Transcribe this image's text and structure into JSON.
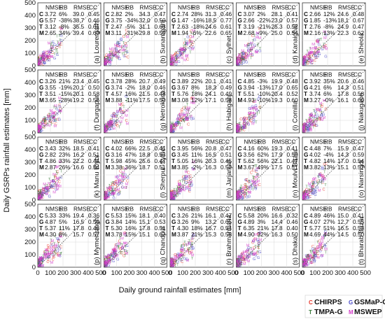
{
  "chart_data": {
    "type": "scatter",
    "xlabel": "Daily ground rainfall estimates [mm]",
    "ylabel": "Daily GSRPs rainfall estimates [mm]",
    "xlim": [
      0,
      500
    ],
    "ylim": [
      0,
      500
    ],
    "xticks": [
      "0",
      "100",
      "200",
      "300",
      "400",
      "500"
    ],
    "yticks": [
      "0",
      "100",
      "200",
      "300",
      "400",
      "500"
    ],
    "grid": true,
    "legend_position": "bottom-right",
    "stat_headers": [
      "NMSE",
      "RB",
      "RMSE",
      "CC"
    ],
    "products": [
      {
        "code": "C",
        "name": "CHIRPS",
        "color": "#e8392d"
      },
      {
        "code": "G",
        "name": "GSMaP-G",
        "color": "#4a4ac8"
      },
      {
        "code": "T",
        "name": "TMPA-G",
        "color": "#3a7a3a"
      },
      {
        "code": "M",
        "name": "MSWEP",
        "color": "#d23cc8"
      }
    ],
    "panels": [
      {
        "label": "(a) Lourergarh",
        "stats": [
          [
            "3.72",
            "6%",
            "39.0",
            "0.45"
          ],
          [
            "5.57",
            "-38%",
            "38.7",
            "0.46"
          ],
          [
            "3.12",
            "-8%",
            "35.5",
            "0.61"
          ],
          [
            "2.65",
            "34%",
            "39.4",
            "0.60"
          ]
        ]
      },
      {
        "label": "(b) Sunamganj",
        "stats": [
          [
            "2.82",
            "2%",
            "34.3",
            "0.47"
          ],
          [
            "3.75",
            "-34%",
            "32.0",
            "0.50"
          ],
          [
            "2.47",
            "-5%",
            "31.1",
            "0.63"
          ],
          [
            "3.11",
            "-31%",
            "29.8",
            "0.59"
          ]
        ]
      },
      {
        "label": "(c) Sylhet",
        "stats": [
          [
            "2.74",
            "28%",
            "31.3",
            "0.46"
          ],
          [
            "1.47",
            "-16%",
            "18.5",
            "0.77"
          ],
          [
            "2.63",
            "-18%",
            "24.6",
            "0.61"
          ],
          [
            "1.94",
            "-6%",
            "22.6",
            "0.65"
          ]
        ]
      },
      {
        "label": "(d) Kanaighat",
        "stats": [
          [
            "3.07",
            "2%",
            "28.1",
            "0.41"
          ],
          [
            "2.66",
            "-22%",
            "23.0",
            "0.57"
          ],
          [
            "3.19",
            "-21%",
            "25.3",
            "0.52"
          ],
          [
            "2.68",
            "-9%",
            "25.0",
            "0.54"
          ]
        ]
      },
      {
        "label": "(e) Sheola",
        "stats": [
          [
            "2.66",
            "12%",
            "24.6",
            "0.48"
          ],
          [
            "1.85",
            "-13%",
            "18.1",
            "0.67"
          ],
          [
            "2.76",
            "-8%",
            "24.9",
            "0.47"
          ],
          [
            "2.16",
            "13%",
            "22.3",
            "0.62"
          ]
        ]
      },
      {
        "label": "(f) Durgapur",
        "stats": [
          [
            "3.26",
            "21%",
            "23.4",
            "0.45"
          ],
          [
            "3.55",
            "-19%",
            "20.1",
            "0.50"
          ],
          [
            "3.51",
            "-15%",
            "20.1",
            "0.58"
          ],
          [
            "3.65",
            "-28%",
            "19.2",
            "0.56"
          ]
        ]
      },
      {
        "label": "(g) Netrokona",
        "stats": [
          [
            "3.78",
            "28%",
            "20.7",
            "0.49"
          ],
          [
            "3.74",
            "-2%",
            "18.0",
            "0.46"
          ],
          [
            "4.57",
            "16%",
            "21.5",
            "0.48"
          ],
          [
            "3.88",
            "-11%",
            "17.5",
            "0.50"
          ]
        ]
      },
      {
        "label": "(h) Habiganj",
        "stats": [
          [
            "3.89",
            "22%",
            "20.1",
            "0.41"
          ],
          [
            "3.67",
            "8%",
            "18.3",
            "0.49"
          ],
          [
            "5.76",
            "18%",
            "24.1",
            "0.49"
          ],
          [
            "3.08",
            "12%",
            "17.1",
            "0.58"
          ]
        ]
      },
      {
        "label": "(i) Comilla",
        "stats": [
          [
            "4.85",
            "-3%",
            "19.9",
            "0.48"
          ],
          [
            "3.94",
            "-13%",
            "17.0",
            "0.65"
          ],
          [
            "5.51",
            "-10%",
            "20.4",
            "0.52"
          ],
          [
            "4.93",
            "-10%",
            "19.3",
            "0.60"
          ]
        ]
      },
      {
        "label": "(j) Nakugaon",
        "stats": [
          [
            "3.92",
            "35%",
            "20.6",
            "0.46"
          ],
          [
            "4.21",
            "6%",
            "14.3",
            "0.51"
          ],
          [
            "3.74",
            "6%",
            "17.8",
            "0.58"
          ],
          [
            "3.27",
            "-0%",
            "16.1",
            "0.60"
          ]
        ]
      },
      {
        "label": "(k) Manu Rlybr",
        "stats": [
          [
            "3.43",
            "32%",
            "18.5",
            "0.41"
          ],
          [
            "2.82",
            "23%",
            "16.2",
            "0.51"
          ],
          [
            "4.86",
            "33%",
            "22.2",
            "0.44"
          ],
          [
            "2.87",
            "26%",
            "16.6",
            "0.54"
          ]
        ]
      },
      {
        "label": "(l) Sherpur-Sylhet",
        "stats": [
          [
            "4.02",
            "66%",
            "22.5",
            "0.41"
          ],
          [
            "3.16",
            "47%",
            "18.8",
            "0.53"
          ],
          [
            "5.98",
            "45%",
            "25.6",
            "0.47"
          ],
          [
            "3.38",
            "36%",
            "18.7",
            "0.51"
          ]
        ]
      },
      {
        "label": "(m) Jarjanjail",
        "stats": [
          [
            "3.95",
            "56%",
            "20.8",
            "0.47"
          ],
          [
            "3.45",
            "11%",
            "16.5",
            "0.51"
          ],
          [
            "5.05",
            "16%",
            "20.3",
            "0.45"
          ],
          [
            "3.85",
            "-2%",
            "16.3",
            "0.52"
          ]
        ]
      },
      {
        "label": "(n) Moulvi Bazar",
        "stats": [
          [
            "4.16",
            "60%",
            "19.3",
            "0.41"
          ],
          [
            "3.56",
            "62%",
            "17.9",
            "0.50"
          ],
          [
            "5.62",
            "56%",
            "22.1",
            "0.47"
          ],
          [
            "3.67",
            "49%",
            "17.5",
            "0.51"
          ]
        ]
      },
      {
        "label": "(o) Narsingdi",
        "stats": [
          [
            "4.48",
            "7%",
            "15.9",
            "0.47"
          ],
          [
            "4.02",
            "-4%",
            "14.3",
            "0.59"
          ],
          [
            "4.82",
            "14%",
            "17.0",
            "0.54"
          ],
          [
            "3.82",
            "13%",
            "15.1",
            "0.57"
          ]
        ]
      },
      {
        "label": "(p) Mymensingh",
        "stats": [
          [
            "5.33",
            "33%",
            "19.4",
            "0.36"
          ],
          [
            "4.87",
            "5%",
            "16.5",
            "0.50"
          ],
          [
            "5.37",
            "11%",
            "17.8",
            "0.48"
          ],
          [
            "4.30",
            "8%",
            "15.7",
            "0.57"
          ]
        ]
      },
      {
        "label": "(q) Chandpur",
        "stats": [
          [
            "5.53",
            "15%",
            "18.1",
            "0.40"
          ],
          [
            "3.84",
            "14%",
            "15.1",
            "0.53"
          ],
          [
            "5.30",
            "16%",
            "17.8",
            "0.51"
          ],
          [
            "3.78",
            "15%",
            "15.1",
            "0.62"
          ]
        ]
      },
      {
        "label": "(r) Brahmanbaria",
        "stats": [
          [
            "3.26",
            "21%",
            "16.1",
            "0.47"
          ],
          [
            "3.26",
            "9%",
            "13.2",
            "0.65"
          ],
          [
            "4.30",
            "18%",
            "16.7",
            "0.54"
          ],
          [
            "3.87",
            "21%",
            "15.3",
            "0.58"
          ]
        ]
      },
      {
        "label": "(s) Dhaka",
        "stats": [
          [
            "5.58",
            "20%",
            "16.6",
            "0.32"
          ],
          [
            "4.89",
            "3%",
            "14.4",
            "0.46"
          ],
          [
            "6.35",
            "21%",
            "17.8",
            "0.40"
          ],
          [
            "4.90",
            "32%",
            "16.3",
            "0.50"
          ]
        ]
      },
      {
        "label": "(t) Bharab Bazar",
        "stats": [
          [
            "4.89",
            "46%",
            "15.0",
            "0.41"
          ],
          [
            "4.07",
            "27%",
            "12.7",
            "0.55"
          ],
          [
            "5.77",
            "51%",
            "16.5",
            "0.53"
          ],
          [
            "4.69",
            "44%",
            "14.5",
            "0.50"
          ]
        ]
      }
    ]
  }
}
